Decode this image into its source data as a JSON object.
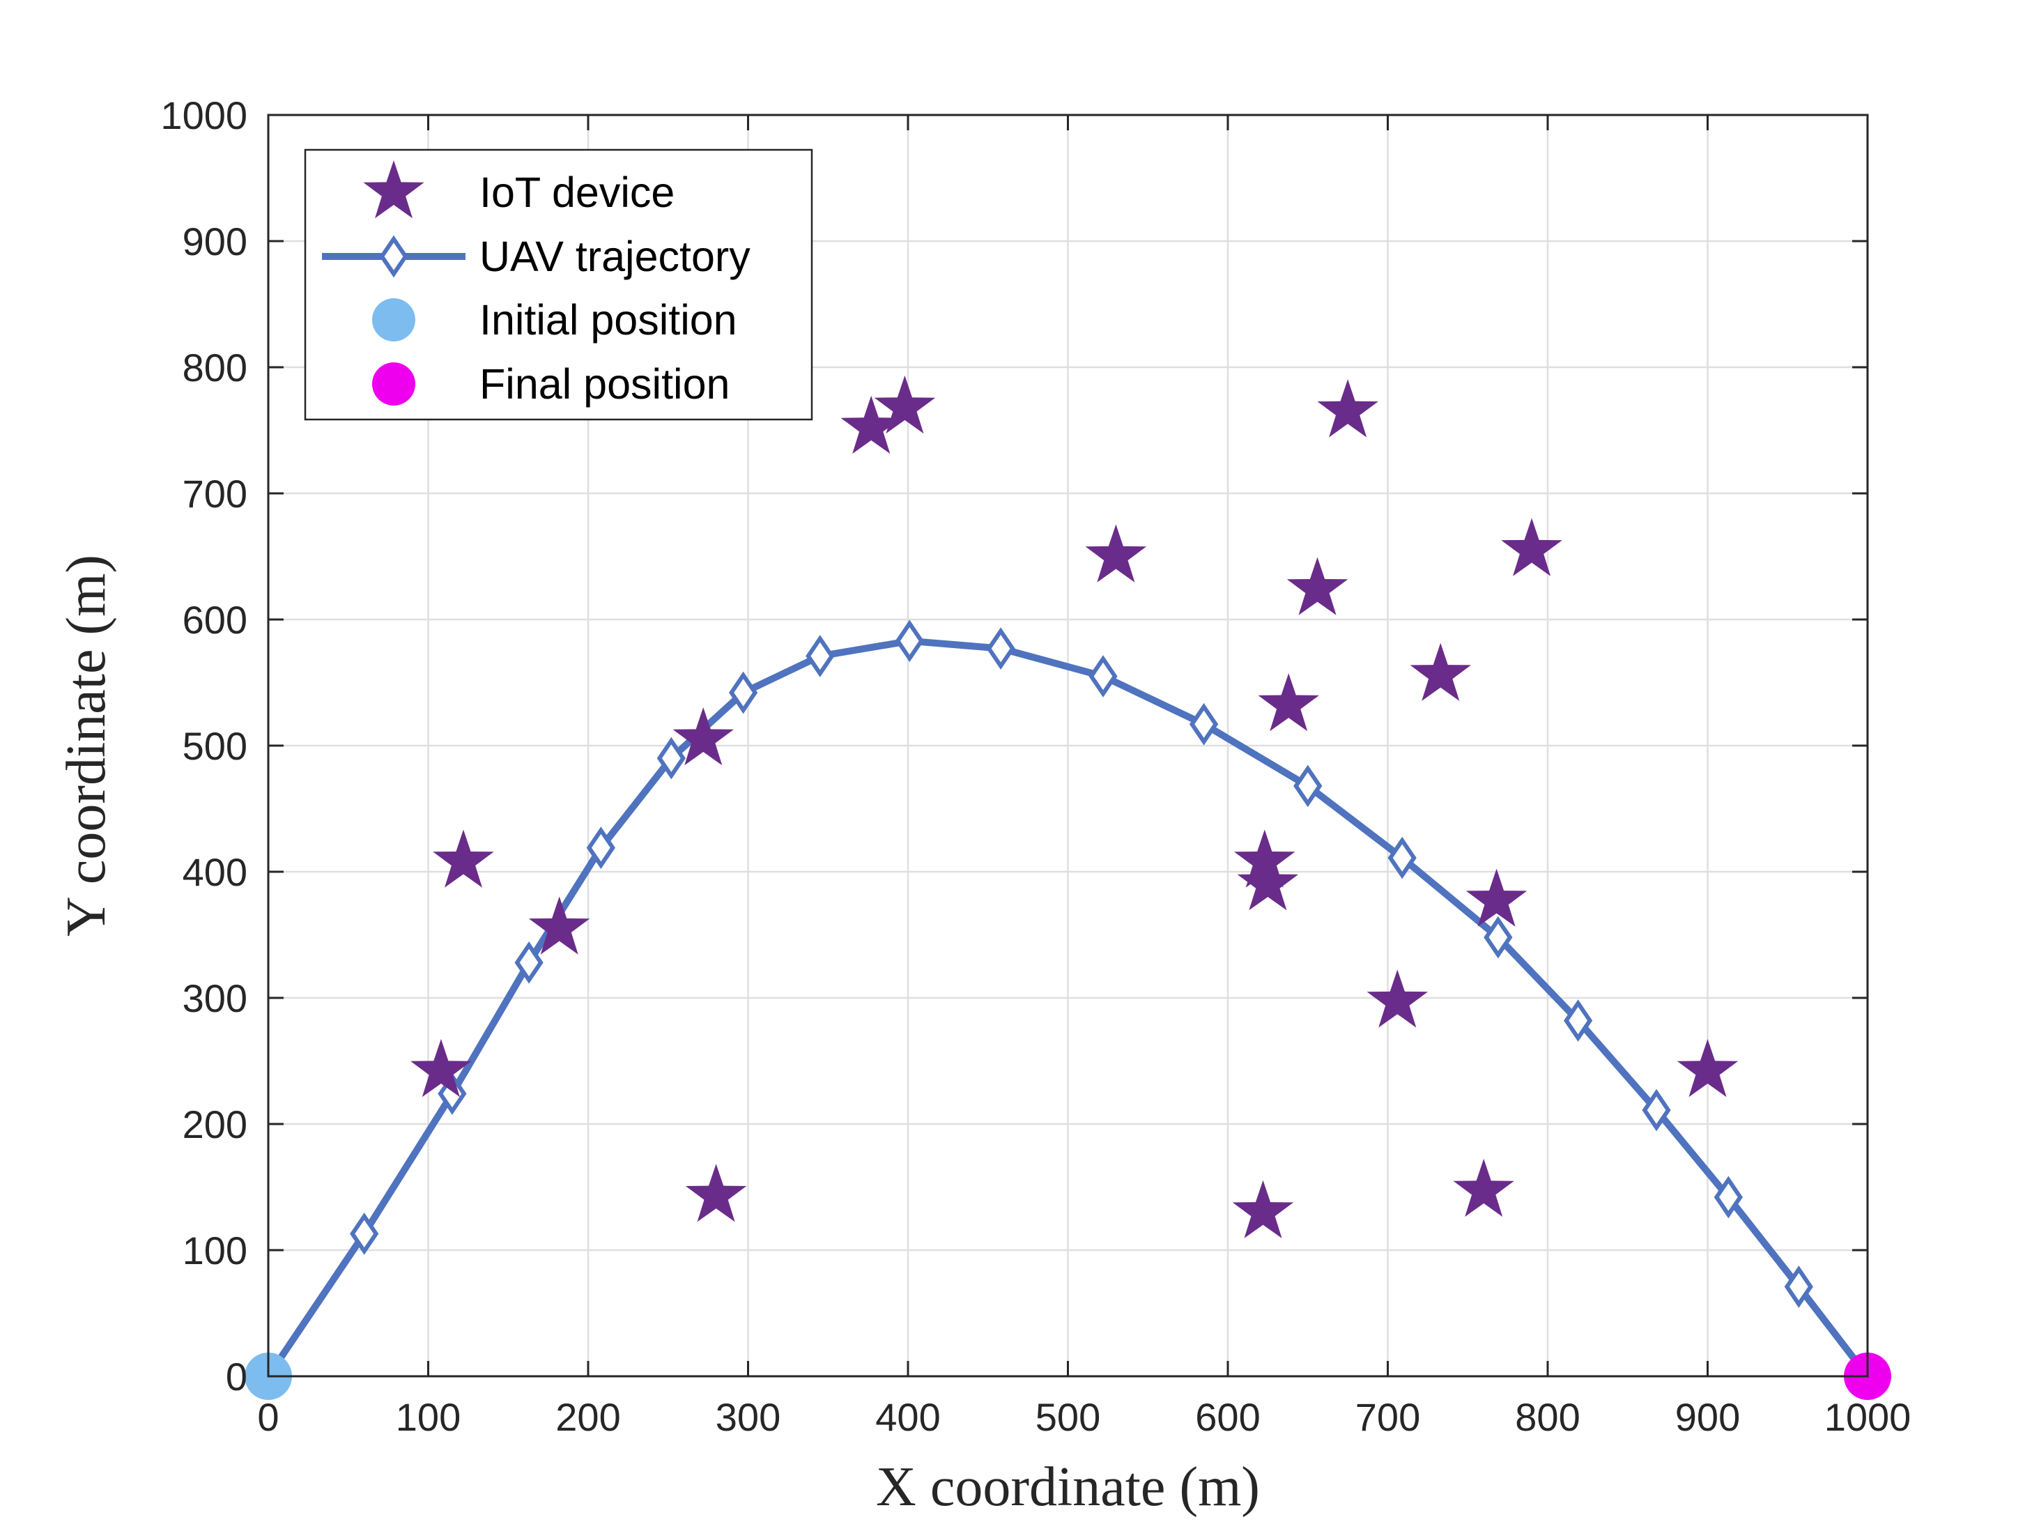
{
  "chart_data": {
    "type": "scatter",
    "title": "",
    "xlabel": "X coordinate (m)",
    "ylabel": "Y coordinate (m)",
    "xlim": [
      0,
      1000
    ],
    "ylim": [
      0,
      1000
    ],
    "grid": true,
    "xticks": [
      0,
      100,
      200,
      300,
      400,
      500,
      600,
      700,
      800,
      900,
      1000
    ],
    "yticks": [
      0,
      100,
      200,
      300,
      400,
      500,
      600,
      700,
      800,
      900,
      1000
    ],
    "legend_position": "top-left",
    "colors": {
      "iot": "#6a2c8a",
      "trajectory": "#4f73be",
      "initial": "#7dbcef",
      "final": "#ee00ee",
      "axis": "#262626",
      "grid": "#dfdfdf"
    },
    "series": [
      {
        "name": "IoT device",
        "marker": "star",
        "x": [
          108,
          122,
          182,
          272,
          280,
          377,
          398,
          530,
          622,
          625,
          623,
          638,
          656,
          675,
          706,
          733,
          760,
          768,
          790,
          900
        ],
        "y": [
          242,
          408,
          355,
          505,
          143,
          752,
          768,
          650,
          130,
          390,
          408,
          532,
          624,
          765,
          297,
          556,
          147,
          377,
          655,
          242
        ]
      },
      {
        "name": "UAV trajectory",
        "marker": "diamond",
        "line": true,
        "x": [
          0,
          60,
          115,
          163,
          208,
          252,
          297,
          345,
          401,
          458,
          522,
          585,
          650,
          709,
          769,
          819,
          868,
          913,
          957,
          1000
        ],
        "y": [
          0,
          113,
          224,
          328,
          419,
          490,
          542,
          571,
          583,
          577,
          555,
          517,
          468,
          411,
          348,
          282,
          211,
          142,
          71,
          0
        ]
      },
      {
        "name": "Initial position",
        "marker": "circle",
        "x": [
          0
        ],
        "y": [
          0
        ]
      },
      {
        "name": "Final position",
        "marker": "circle",
        "x": [
          1000
        ],
        "y": [
          0
        ]
      }
    ]
  }
}
